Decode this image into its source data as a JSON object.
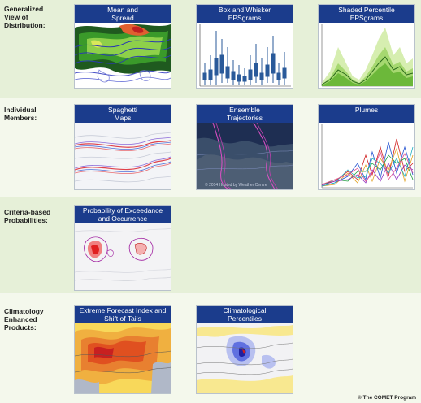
{
  "rows": [
    {
      "label": "Generalized\nView of\nDistribution:"
    },
    {
      "label": "Individual\nMembers:"
    },
    {
      "label": "Criteria-based\nProbabilities:"
    },
    {
      "label": "Climatology\nEnhanced\nProducts:"
    }
  ],
  "cards": {
    "mean_spread": {
      "title": "Mean and\nSpread"
    },
    "box_whisker": {
      "title": "Box and Whisker\nEPSgrams"
    },
    "shaded_percentile": {
      "title": "Shaded Percentile\nEPSgrams"
    },
    "spaghetti": {
      "title": "Spaghetti\nMaps"
    },
    "trajectories": {
      "title": "Ensemble\nTrajectories",
      "watermark": "© 2014 Hosted by Weather Centre"
    },
    "plumes": {
      "title": "Plumes"
    },
    "exceedance": {
      "title": "Probability of Exceedance\nand Occurrence"
    },
    "efi": {
      "title": "Extreme Forecast Index and\nShift of Tails"
    },
    "clim_percentiles": {
      "title": "Climatological\nPercentiles"
    }
  },
  "copyright": "© The COMET Program"
}
